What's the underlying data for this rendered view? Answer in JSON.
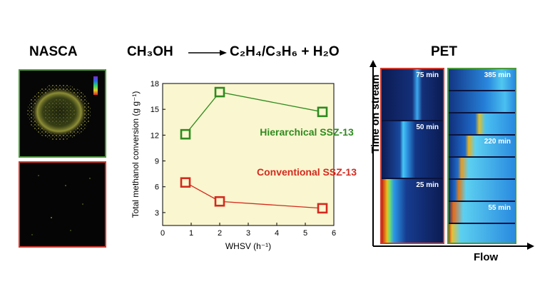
{
  "headings": {
    "nasca": "NASCA",
    "pet": "PET",
    "reaction": {
      "reactant": "CH₃OH",
      "products": "C₂H₄/C₃H₆ + H₂O"
    }
  },
  "pet_axes": {
    "y_label": "Time on stream",
    "x_label": "Flow"
  },
  "pet_times": {
    "conventional": [
      "75 min",
      "50 min",
      "25 min"
    ],
    "hierarchical": [
      "385 min",
      "220 min",
      "55 min"
    ]
  },
  "colors": {
    "hierarchical": "#2e8b1f",
    "conventional": "#d42a1f",
    "chart_background": "#faf6cf",
    "green_frame": "#4b9a3b",
    "red_frame": "#d23a2e"
  },
  "chart_data": {
    "type": "line",
    "xlabel": "WHSV (h⁻¹)",
    "ylabel": "Total methanol conversion (g g⁻¹)",
    "xlim": [
      0,
      6
    ],
    "ylim": [
      1.5,
      18
    ],
    "xticks": [
      0,
      1,
      2,
      3,
      4,
      5,
      6
    ],
    "yticks": [
      3,
      6,
      9,
      12,
      15,
      18
    ],
    "grid": false,
    "series": [
      {
        "name": "Hierarchical SSZ-13",
        "x": [
          0.8,
          2.0,
          5.6
        ],
        "y": [
          12.1,
          17.0,
          14.7
        ]
      },
      {
        "name": "Conventional SSZ-13",
        "x": [
          0.8,
          2.0,
          5.6
        ],
        "y": [
          6.5,
          4.3,
          3.5
        ]
      }
    ]
  }
}
